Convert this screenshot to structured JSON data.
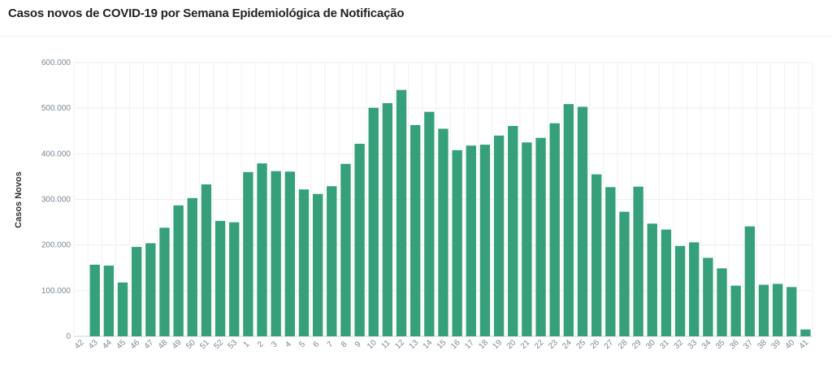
{
  "title": "Casos novos de COVID-19 por Semana Epidemiológica de Notificação",
  "chart_data": {
    "type": "bar",
    "title": "Casos novos de COVID-19 por Semana Epidemiológica de Notificação",
    "xlabel": "",
    "ylabel": "Casos Novos",
    "ylim": [
      0,
      600000
    ],
    "yticks": [
      0,
      100000,
      200000,
      300000,
      400000,
      500000,
      600000
    ],
    "ytick_labels": [
      "0",
      "100.000",
      "200.000",
      "300.000",
      "400.000",
      "500.000",
      "600.000"
    ],
    "grid": true,
    "color": "#35a07a",
    "categories": [
      "42",
      "43",
      "44",
      "45",
      "46",
      "47",
      "48",
      "49",
      "50",
      "51",
      "52",
      "53",
      "1",
      "2",
      "3",
      "4",
      "5",
      "6",
      "7",
      "8",
      "9",
      "10",
      "11",
      "12",
      "13",
      "14",
      "15",
      "16",
      "17",
      "18",
      "19",
      "20",
      "21",
      "22",
      "23",
      "24",
      "25",
      "26",
      "27",
      "28",
      "29",
      "30",
      "31",
      "32",
      "33",
      "34",
      "35",
      "36",
      "37",
      "38",
      "39",
      "40",
      "41"
    ],
    "values": [
      0,
      157000,
      155000,
      118000,
      196000,
      204000,
      238000,
      287000,
      303000,
      333000,
      253000,
      250000,
      360000,
      379000,
      362000,
      361000,
      322000,
      312000,
      329000,
      378000,
      422000,
      501000,
      511000,
      540000,
      463000,
      492000,
      455000,
      408000,
      418000,
      420000,
      440000,
      461000,
      425000,
      435000,
      467000,
      509000,
      503000,
      355000,
      327000,
      273000,
      328000,
      247000,
      234000,
      198000,
      206000,
      172000,
      149000,
      111000,
      241000,
      113000,
      115000,
      108000,
      15000
    ]
  }
}
